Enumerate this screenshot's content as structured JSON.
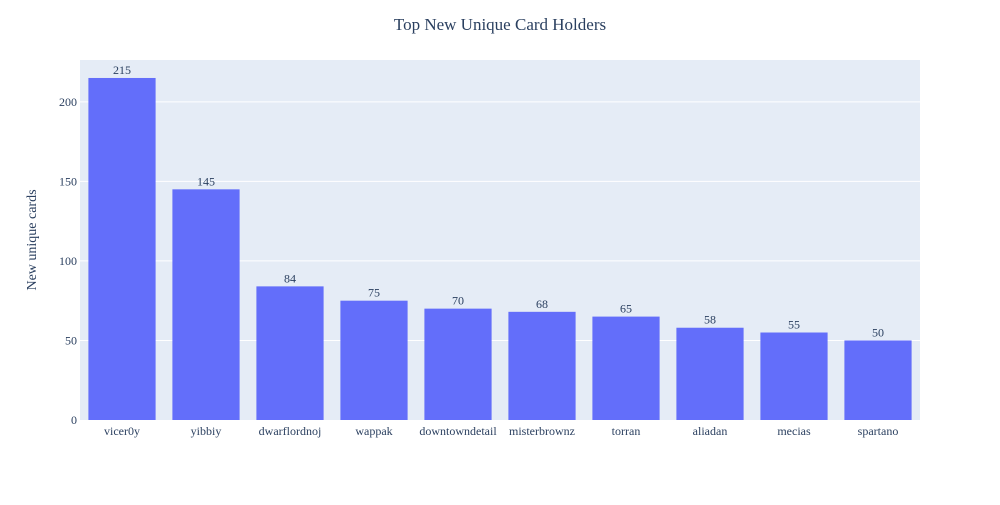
{
  "chart_data": {
    "type": "bar",
    "title": "Top New Unique Card Holders",
    "xlabel": "",
    "ylabel": "New unique cards",
    "categories": [
      "vicer0y",
      "yibbiy",
      "dwarflordnoj",
      "wappak",
      "downtowndetail",
      "misterbrownz",
      "torran",
      "aliadan",
      "mecias",
      "spartano"
    ],
    "values": [
      215,
      145,
      84,
      75,
      70,
      68,
      65,
      58,
      55,
      50
    ],
    "data_labels": [
      "215",
      "145",
      "84",
      "75",
      "70",
      "68",
      "65",
      "58",
      "55",
      "50"
    ],
    "ylim": [
      0,
      226.3
    ],
    "yticks": [
      0,
      50,
      100,
      150,
      200
    ],
    "ytick_labels": [
      "0",
      "50",
      "100",
      "150",
      "200"
    ],
    "grid": true,
    "legend": "none"
  },
  "colors": {
    "bar": "#636efa",
    "plot_background": "#e5ecf6",
    "gridline": "#ffffff",
    "text": "#2a3f5f"
  }
}
